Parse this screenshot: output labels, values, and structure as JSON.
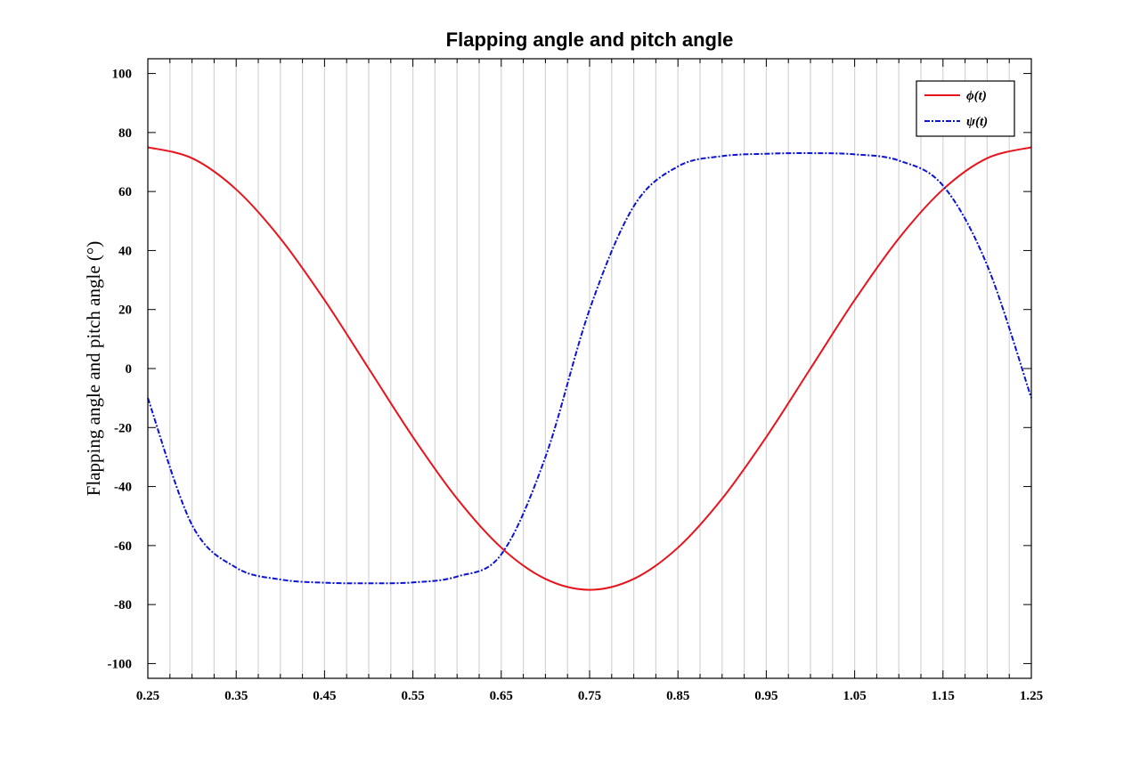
{
  "chart_data": {
    "type": "line",
    "title": "Flapping angle and pitch angle",
    "xlabel": "",
    "ylabel": "Flapping angle and pitch angle (°)",
    "xlim": [
      0.25,
      1.25
    ],
    "ylim": [
      -105,
      105
    ],
    "x_ticks": [
      "0.25",
      "0.35",
      "0.45",
      "0.55",
      "0.65",
      "0.75",
      "0.85",
      "0.95",
      "1.05",
      "1.15",
      "1.25"
    ],
    "y_ticks": [
      "-100",
      "-80",
      "-60",
      "-40",
      "-20",
      "0",
      "20",
      "40",
      "60",
      "80",
      "100"
    ],
    "vertical_grid": true,
    "horizontal_grid": false,
    "legend_position": "top-right",
    "x": [
      0.25,
      0.3,
      0.35,
      0.4,
      0.45,
      0.5,
      0.55,
      0.6,
      0.65,
      0.7,
      0.75,
      0.8,
      0.85,
      0.9,
      0.95,
      1.0,
      1.05,
      1.1,
      1.15,
      1.2,
      1.25
    ],
    "series": [
      {
        "name": "ϕ(t)",
        "color": "#e8141c",
        "style": "solid",
        "values": [
          75.0,
          71.3,
          60.7,
          44.1,
          23.2,
          0.0,
          -23.2,
          -44.1,
          -60.7,
          -71.3,
          -75.0,
          -71.3,
          -60.7,
          -44.1,
          -23.2,
          0.0,
          23.2,
          44.1,
          60.7,
          71.3,
          75.0
        ]
      },
      {
        "name": "ψ(t)",
        "color": "#0a14d2",
        "style": "dashdot",
        "values": [
          -10.0,
          -53.0,
          -67.5,
          -71.5,
          -72.6,
          -72.8,
          -72.5,
          -70.5,
          -63.0,
          -30.0,
          20.0,
          55.0,
          68.5,
          72.0,
          72.8,
          73.0,
          72.6,
          70.5,
          62.0,
          35.0,
          -10.0
        ]
      }
    ]
  }
}
